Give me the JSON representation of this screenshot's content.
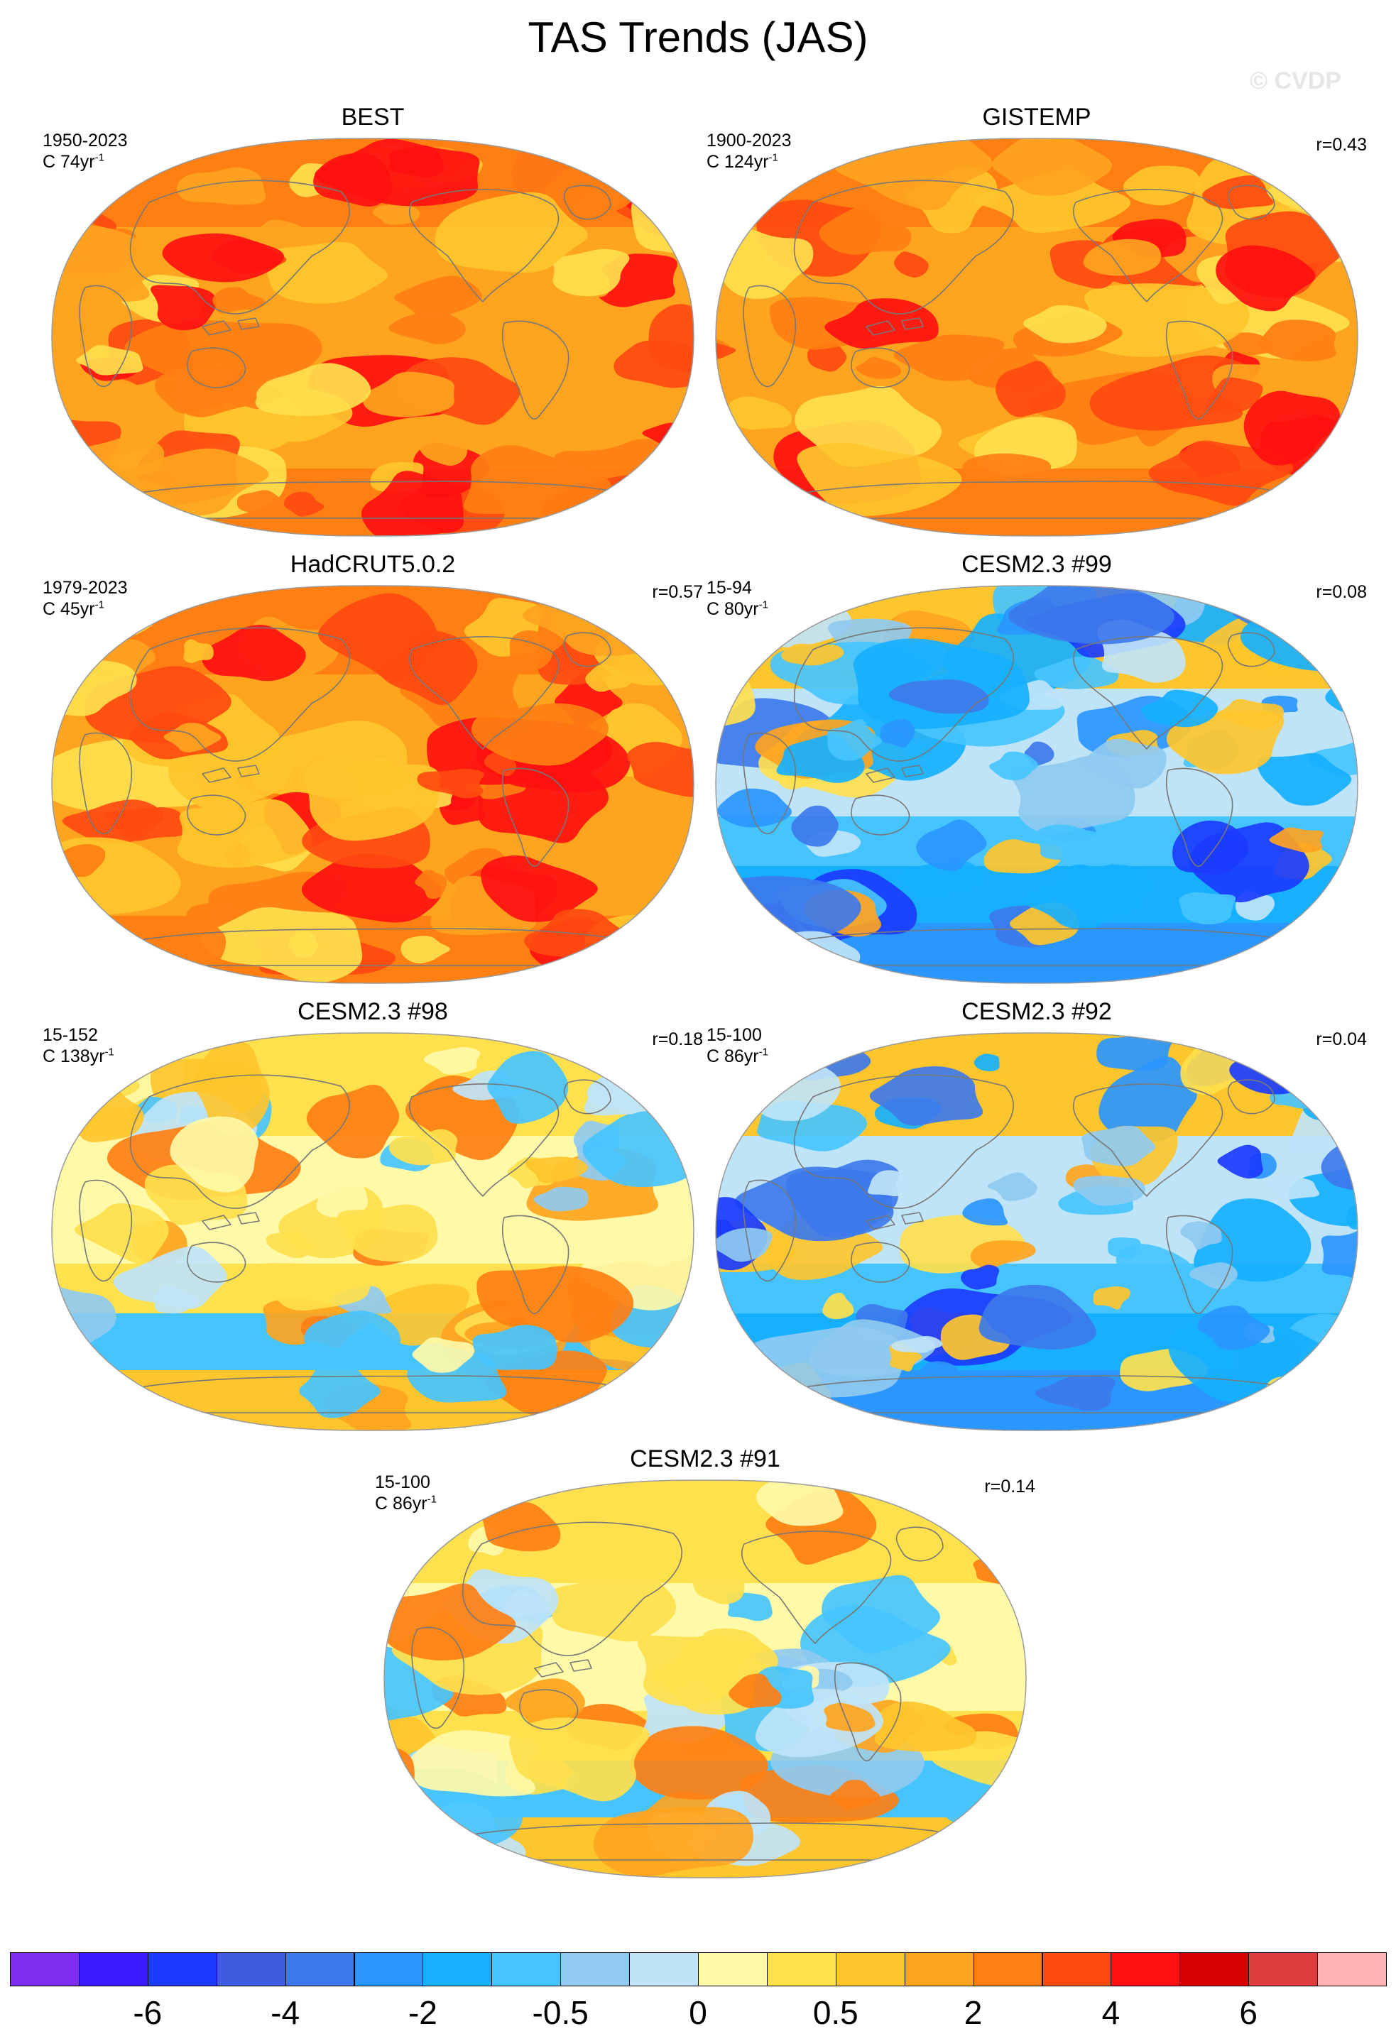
{
  "title": "TAS Trends (JAS)",
  "watermark": "© CVDP",
  "panels": [
    {
      "title": "BEST",
      "line1": "1950-2023",
      "line2_prefix": "C 74yr",
      "line2_sup": "-1",
      "r": "",
      "regime": "warm"
    },
    {
      "title": "GISTEMP",
      "line1": "1900-2023",
      "line2_prefix": "C 124yr",
      "line2_sup": "-1",
      "r": "r=0.43",
      "regime": "warm"
    },
    {
      "title": "HadCRUT5.0.2",
      "line1": "1979-2023",
      "line2_prefix": "C 45yr",
      "line2_sup": "-1",
      "r": "r=0.57",
      "regime": "warm"
    },
    {
      "title": "CESM2.3 #99",
      "line1": "15-94",
      "line2_prefix": "C 80yr",
      "line2_sup": "-1",
      "r": "r=0.08",
      "regime": "cool"
    },
    {
      "title": "CESM2.3 #98",
      "line1": "15-152",
      "line2_prefix": "C 138yr",
      "line2_sup": "-1",
      "r": "r=0.18",
      "regime": "mixed"
    },
    {
      "title": "CESM2.3 #92",
      "line1": "15-100",
      "line2_prefix": "C 86yr",
      "line2_sup": "-1",
      "r": "r=0.04",
      "regime": "cool"
    },
    {
      "title": "CESM2.3 #91",
      "line1": "15-100",
      "line2_prefix": "C 86yr",
      "line2_sup": "-1",
      "r": "r=0.14",
      "regime": "mixed"
    }
  ],
  "colorbar": {
    "colors": [
      "#7f2ef0",
      "#3b1aff",
      "#1b3cff",
      "#3e5ce0",
      "#3d79ec",
      "#2a96ff",
      "#16b0ff",
      "#46c4ff",
      "#8fcaf0",
      "#bfe4f8",
      "#fff9a8",
      "#ffe04d",
      "#ffc52c",
      "#ffa41f",
      "#ff7f12",
      "#ff4a10",
      "#ff1010",
      "#d70000",
      "#dd3d3d",
      "#ffb3b3"
    ],
    "labels": [
      "-6",
      "-4",
      "-2",
      "-0.5",
      "0",
      "0.5",
      "2",
      "4",
      "6"
    ]
  },
  "palette": {
    "warm": [
      "#ffa41f",
      "#ffc52c",
      "#ff7f12",
      "#ffe04d",
      "#ff4a10",
      "#ff1010"
    ],
    "cool": [
      "#bfe4f8",
      "#8fcaf0",
      "#46c4ff",
      "#16b0ff",
      "#2a96ff",
      "#3d79ec",
      "#1b3cff",
      "#ffe04d",
      "#ffc52c",
      "#ffa41f"
    ],
    "mixed": [
      "#fff9a8",
      "#bfe4f8",
      "#ffe04d",
      "#ffc52c",
      "#8fcaf0",
      "#46c4ff",
      "#ffa41f",
      "#ff7f12"
    ],
    "land_outline": "#777777"
  }
}
